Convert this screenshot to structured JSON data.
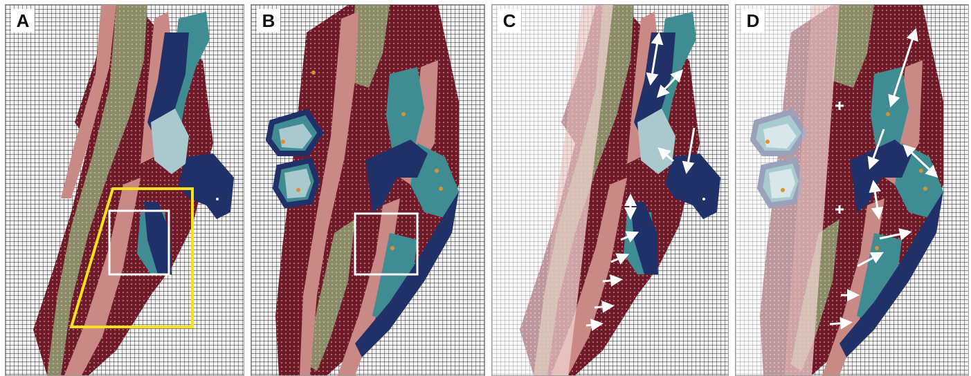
{
  "figure": {
    "panels": [
      {
        "id": "a",
        "label": "A"
      },
      {
        "id": "b",
        "label": "B"
      },
      {
        "id": "c",
        "label": "C"
      },
      {
        "id": "d",
        "label": "D"
      }
    ]
  },
  "colors": {
    "grid_line": "#1e1e1e",
    "grid_background": "#f2f2f2",
    "maroon": "#6e1a28",
    "pink": "#c98a86",
    "olive": "#8b8b67",
    "navy": "#1f3168",
    "teal": "#3f8d93",
    "light_blue": "#a9c9cf",
    "yellow_outline": "#f5e21a",
    "white_marks": "#ffffff",
    "orange_mark": "#d9932e",
    "blade_overlay": "#f0d3d0"
  },
  "icons": {
    "arrow": "white-arrow-icon",
    "double_arrow": "white-double-arrow-icon",
    "cross": "white-cross-icon"
  }
}
